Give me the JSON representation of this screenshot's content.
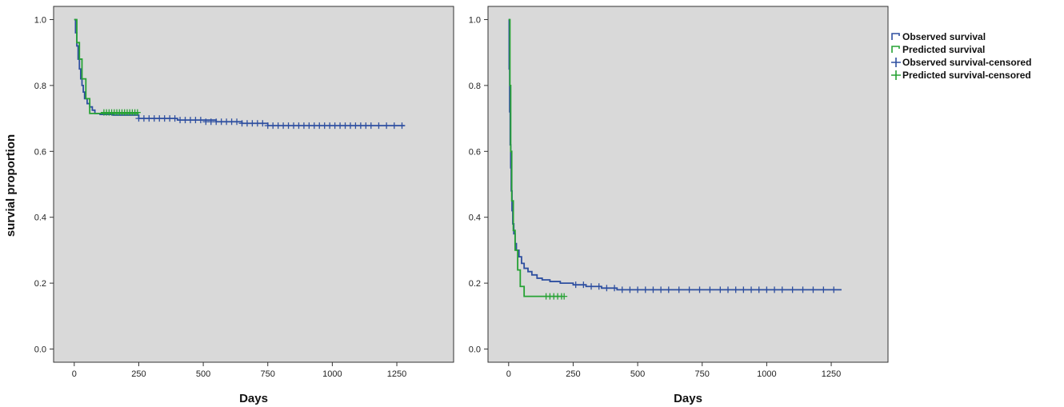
{
  "colors": {
    "observed": "#2e4fa0",
    "predicted": "#26a234",
    "plot_bg": "#d9d9d9",
    "axis": "#333333"
  },
  "legend": {
    "placement": "right",
    "entries": [
      {
        "label": "Observed survival",
        "kind": "step",
        "color": "#2e4fa0"
      },
      {
        "label": "Predicted survival",
        "kind": "step",
        "color": "#26a234"
      },
      {
        "label": "Observed survival-censored",
        "kind": "cross",
        "color": "#2e4fa0"
      },
      {
        "label": "Predicted survival-censored",
        "kind": "cross",
        "color": "#26a234"
      }
    ]
  },
  "chart_data": [
    {
      "type": "line",
      "xlabel": "Days",
      "ylabel": "survial proportion",
      "xlim": [
        -80,
        1470
      ],
      "ylim": [
        -0.04,
        1.04
      ],
      "xticks": [
        0,
        250,
        500,
        750,
        1000,
        1250
      ],
      "yticks": [
        0.0,
        0.2,
        0.4,
        0.6,
        0.8,
        1.0
      ],
      "grid": false,
      "series": [
        {
          "name": "Observed survival",
          "step": true,
          "x": [
            0,
            5,
            10,
            15,
            20,
            25,
            30,
            35,
            40,
            50,
            60,
            70,
            80,
            100,
            150,
            250,
            400,
            550,
            650,
            750,
            1280
          ],
          "y": [
            1.0,
            0.96,
            0.92,
            0.88,
            0.85,
            0.82,
            0.8,
            0.78,
            0.76,
            0.745,
            0.735,
            0.725,
            0.715,
            0.712,
            0.71,
            0.7,
            0.695,
            0.69,
            0.685,
            0.678,
            0.678
          ],
          "censored_x": [
            250,
            270,
            290,
            310,
            330,
            350,
            370,
            390,
            410,
            430,
            450,
            470,
            490,
            510,
            530,
            550,
            570,
            590,
            610,
            630,
            650,
            670,
            690,
            710,
            730,
            750,
            770,
            790,
            810,
            830,
            850,
            870,
            890,
            910,
            930,
            950,
            970,
            990,
            1010,
            1030,
            1050,
            1070,
            1090,
            1110,
            1130,
            1150,
            1180,
            1210,
            1240,
            1270
          ],
          "censored_y": [
            0.7,
            0.7,
            0.7,
            0.7,
            0.7,
            0.7,
            0.7,
            0.7,
            0.695,
            0.695,
            0.695,
            0.695,
            0.695,
            0.69,
            0.69,
            0.69,
            0.69,
            0.69,
            0.69,
            0.69,
            0.685,
            0.685,
            0.685,
            0.685,
            0.685,
            0.678,
            0.678,
            0.678,
            0.678,
            0.678,
            0.678,
            0.678,
            0.678,
            0.678,
            0.678,
            0.678,
            0.678,
            0.678,
            0.678,
            0.678,
            0.678,
            0.678,
            0.678,
            0.678,
            0.678,
            0.678,
            0.678,
            0.678,
            0.678,
            0.678
          ]
        },
        {
          "name": "Predicted survival",
          "step": true,
          "x": [
            0,
            10,
            20,
            30,
            45,
            60,
            250
          ],
          "y": [
            1.0,
            0.93,
            0.88,
            0.82,
            0.76,
            0.715,
            0.715
          ],
          "censored_x": [
            115,
            125,
            135,
            145,
            155,
            165,
            175,
            185,
            195,
            205,
            215,
            225,
            235,
            245
          ],
          "censored_y": [
            0.718,
            0.718,
            0.718,
            0.718,
            0.718,
            0.718,
            0.718,
            0.718,
            0.718,
            0.718,
            0.718,
            0.718,
            0.718,
            0.718
          ]
        }
      ]
    },
    {
      "type": "line",
      "xlabel": "Days",
      "ylabel": "",
      "xlim": [
        -80,
        1470
      ],
      "ylim": [
        -0.04,
        1.04
      ],
      "xticks": [
        0,
        250,
        500,
        750,
        1000,
        1250
      ],
      "yticks": [
        0.0,
        0.2,
        0.4,
        0.6,
        0.8,
        1.0
      ],
      "grid": false,
      "series": [
        {
          "name": "Observed survival",
          "step": true,
          "x": [
            0,
            2,
            4,
            6,
            8,
            10,
            13,
            16,
            20,
            25,
            30,
            40,
            50,
            60,
            75,
            90,
            110,
            130,
            160,
            200,
            250,
            300,
            360,
            420,
            1290
          ],
          "y": [
            1.0,
            0.85,
            0.72,
            0.62,
            0.55,
            0.48,
            0.42,
            0.38,
            0.35,
            0.32,
            0.3,
            0.28,
            0.26,
            0.245,
            0.235,
            0.225,
            0.215,
            0.21,
            0.205,
            0.2,
            0.195,
            0.19,
            0.185,
            0.18,
            0.18
          ],
          "censored_x": [
            260,
            290,
            320,
            350,
            380,
            410,
            440,
            470,
            500,
            530,
            560,
            590,
            620,
            660,
            700,
            740,
            780,
            820,
            850,
            880,
            910,
            940,
            970,
            1000,
            1030,
            1060,
            1100,
            1140,
            1180,
            1220,
            1260
          ],
          "censored_y": [
            0.195,
            0.195,
            0.19,
            0.19,
            0.185,
            0.185,
            0.18,
            0.18,
            0.18,
            0.18,
            0.18,
            0.18,
            0.18,
            0.18,
            0.18,
            0.18,
            0.18,
            0.18,
            0.18,
            0.18,
            0.18,
            0.18,
            0.18,
            0.18,
            0.18,
            0.18,
            0.18,
            0.18,
            0.18,
            0.18,
            0.18
          ]
        },
        {
          "name": "Predicted survival",
          "step": true,
          "x": [
            0,
            5,
            8,
            12,
            18,
            25,
            35,
            45,
            60,
            210
          ],
          "y": [
            1.0,
            0.8,
            0.6,
            0.45,
            0.36,
            0.3,
            0.24,
            0.19,
            0.16,
            0.16
          ],
          "censored_x": [
            145,
            160,
            175,
            190,
            205,
            215
          ],
          "censored_y": [
            0.16,
            0.16,
            0.16,
            0.16,
            0.16,
            0.16
          ]
        }
      ]
    }
  ]
}
